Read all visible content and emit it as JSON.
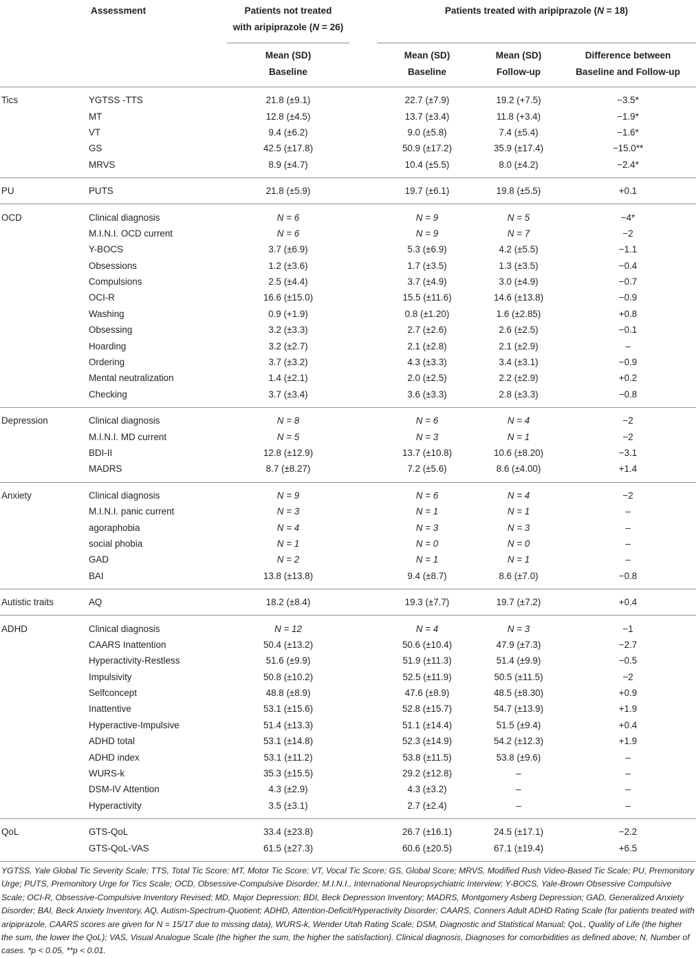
{
  "header": {
    "assessment": "Assessment",
    "not_treated_line1": "Patients not treated",
    "not_treated_line2": "with aripiprazole (",
    "not_treated_n": "N",
    "not_treated_count": " = 26)",
    "treated_prefix": "Patients treated with aripiprazole (",
    "treated_n": "N",
    "treated_count": " = 18)",
    "col_nt_line1": "Mean (SD)",
    "col_nt_line2": "Baseline",
    "col_tb_line1": "Mean (SD)",
    "col_tb_line2": "Baseline",
    "col_tf_line1": "Mean (SD)",
    "col_tf_line2": "Follow-up",
    "col_diff_line1": "Difference between",
    "col_diff_line2": "Baseline and Follow-up"
  },
  "groups": [
    {
      "name": "Tics",
      "rows": [
        [
          "YGTSS -TTS",
          "21.8 (±9.1)",
          "22.7 (±7.9)",
          "19.2 (+7.5)",
          "−3.5*"
        ],
        [
          "MT",
          "12.8 (±4.5)",
          "13.7 (±3.4)",
          "11.8 (+3.4)",
          "−1.9*"
        ],
        [
          "VT",
          "9.4 (±6.2)",
          "9.0 (±5.8)",
          "7.4 (±5.4)",
          "−1.6*"
        ],
        [
          "GS",
          "42.5 (±17.8)",
          "50.9 (±17.2)",
          "35.9 (±17.4)",
          "−15.0**"
        ],
        [
          "MRVS",
          "8.9 (±4.7)",
          "10.4 (±5.5)",
          "8.0 (±4.2)",
          "−2.4*"
        ]
      ]
    },
    {
      "name": "PU",
      "rows": [
        [
          "PUTS",
          "21.8 (±5.9)",
          "19.7 (±6.1)",
          "19.8 (±5.5)",
          "+0.1"
        ]
      ]
    },
    {
      "name": "OCD",
      "rows": [
        [
          "Clinical diagnosis",
          "N = 6",
          "N = 9",
          "N = 5",
          "−4*"
        ],
        [
          "M.I.N.I. OCD current",
          "N = 6",
          "N = 9",
          "N = 7",
          "−2"
        ],
        [
          "Y-BOCS",
          "3.7 (±6.9)",
          "5.3 (±6.9)",
          "4.2 (±5.5)",
          "−1.1"
        ],
        [
          "Obsessions",
          "1.2 (±3.6)",
          "1.7 (±3.5)",
          "1.3 (±3.5)",
          "−0.4"
        ],
        [
          "Compulsions",
          "2.5 (±4.4)",
          "3.7 (±4.9)",
          "3.0 (±4.9)",
          "−0.7"
        ],
        [
          "OCI-R",
          "16.6 (±15.0)",
          "15.5 (±11.6)",
          "14.6 (±13.8)",
          "−0.9"
        ],
        [
          "Washing",
          "0.9 (+1.9)",
          "0.8 (±1.20)",
          "1.6 (±2.85)",
          "+0.8"
        ],
        [
          "Obsessing",
          "3.2 (±3.3)",
          "2.7 (±2.6)",
          "2.6 (±2.5)",
          "−0.1"
        ],
        [
          "Hoarding",
          "3.2 (±2.7)",
          "2.1 (±2.8)",
          "2.1 (±2.9)",
          "–"
        ],
        [
          "Ordering",
          "3.7 (±3.2)",
          "4.3 (±3.3)",
          "3.4 (±3.1)",
          "−0.9"
        ],
        [
          "Mental neutralization",
          "1.4 (±2.1)",
          "2.0 (±2.5)",
          "2.2 (±2.9)",
          "+0.2"
        ],
        [
          "Checking",
          "3.7 (±3.4)",
          "3.6 (±3.3)",
          "2.8 (±3.3)",
          "−0.8"
        ]
      ]
    },
    {
      "name": "Depression",
      "rows": [
        [
          "Clinical diagnosis",
          "N = 8",
          "N = 6",
          "N = 4",
          "−2"
        ],
        [
          "M.I.N.I. MD current",
          "N = 5",
          "N = 3",
          "N = 1",
          "−2"
        ],
        [
          "BDI-II",
          "12.8 (±12.9)",
          "13.7 (±10.8)",
          "10.6 (±8.20)",
          "−3.1"
        ],
        [
          "MADRS",
          "8.7 (±8.27)",
          "7.2 (±5.6)",
          "8.6 (±4.00)",
          "+1.4"
        ]
      ]
    },
    {
      "name": "Anxiety",
      "rows": [
        [
          "Clinical diagnosis",
          "N = 9",
          "N = 6",
          "N = 4",
          "−2"
        ],
        [
          "M.I.N.I. panic current",
          "N = 3",
          "N = 1",
          "N = 1",
          "–"
        ],
        [
          "agoraphobia",
          "N = 4",
          "N = 3",
          "N = 3",
          "–"
        ],
        [
          "social phobia",
          "N = 1",
          "N = 0",
          "N = 0",
          "–"
        ],
        [
          "GAD",
          "N = 2",
          "N = 1",
          "N = 1",
          "–"
        ],
        [
          "BAI",
          "13.8 (±13.8)",
          "9.4 (±8.7)",
          "8.6 (±7.0)",
          "−0.8"
        ]
      ]
    },
    {
      "name": "Autistic traits",
      "rows": [
        [
          "AQ",
          "18.2 (±8.4)",
          "19.3 (±7.7)",
          "19.7 (±7.2)",
          "+0.4"
        ]
      ]
    },
    {
      "name": "ADHD",
      "rows": [
        [
          "Clinical diagnosis",
          "N = 12",
          "N = 4",
          "N = 3",
          "−1"
        ],
        [
          "CAARS Inattention",
          "50.4 (±13.2)",
          "50.6 (±10.4)",
          "47.9 (±7.3)",
          "−2.7"
        ],
        [
          "Hyperactivity-Restless",
          "51.6 (±9.9)",
          "51.9 (±11.3)",
          "51.4 (±9.9)",
          "−0.5"
        ],
        [
          "Impulsivity",
          "50.8 (±10.2)",
          "52.5 (±11.9)",
          "50.5 (±11.5)",
          "−2"
        ],
        [
          "Selfconcept",
          "48.8 (±8.9)",
          "47.6 (±8.9)",
          "48.5 (±8.30)",
          "+0.9"
        ],
        [
          "Inattentive",
          "53.1 (±15.6)",
          "52.8 (±15.7)",
          "54.7 (±13.9)",
          "+1.9"
        ],
        [
          "Hyperactive-Impulsive",
          "51.4 (±13.3)",
          "51.1 (±14.4)",
          "51.5 (±9.4)",
          "+0.4"
        ],
        [
          "ADHD total",
          "53.1 (±14.8)",
          "52.3 (±14.9)",
          "54.2 (±12.3)",
          "+1.9"
        ],
        [
          "ADHD index",
          "53.1 (±11.2)",
          "53.8 (±11.5)",
          "53.8 (±9.6)",
          "–"
        ],
        [
          "WURS-k",
          "35.3 (±15.5)",
          "29.2 (±12.8)",
          "–",
          "–"
        ],
        [
          "DSM-IV Attention",
          "4.3 (±2.9)",
          "4.3 (±3.2)",
          "–",
          "–"
        ],
        [
          "Hyperactivity",
          "3.5 (±3.1)",
          "2.7 (±2.4)",
          "–",
          "–"
        ]
      ]
    },
    {
      "name": "QoL",
      "rows": [
        [
          "GTS-QoL",
          "33.4 (±23.8)",
          "26.7 (±16.1)",
          "24.5 (±17.1)",
          "−2.2"
        ],
        [
          "GTS-QoL-VAS",
          "61.5 (±27.3)",
          "60.6 (±20.5)",
          "67.1 (±19.4)",
          "+6.5"
        ]
      ]
    }
  ],
  "footnote": "YGTSS, Yale Global Tic Severity Scale; TTS, Total Tic Score; MT, Motor Tic Score; VT, Vocal Tic Score; GS, Global Score; MRVS, Modified Rush Video-Based Tic Scale; PU, Premonitory Urge; PUTS, Premonitory Urge for Tics Scale; OCD, Obsessive-Compulsive Disorder; M.I.N.I., International Neuropsychiatric Interview; Y-BOCS, Yale-Brown Obsessive Compulsive Scale; OCI-R, Obsessive-Compulsive Inventory Revised; MD, Major Depression; BDI, Beck Depression Inventory; MADRS, Montgomery Asberg Depression; GAD, Generalized Anxiety Disorder; BAI, Beck Anxiety Inventory, AQ, Autism-Spectrum-Quotient; ADHD, Attention-Deficit/Hyperactivity Disorder; CAARS, Conners Adult ADHD Rating Scale (for patients treated with aripiprazole, CAARS scores are given for N = 15/17 due to missing data), WURS-k, Wender Utah Rating Scale; DSM, Diagnostic and Statistical Manual; QoL, Quality of Life (the higher the sum, the lower the QoL); VAS, Visual Analogue Scale (the higher the sum, the higher the satisfaction). Clinical diagnosis, Diagnoses for comorbidities as defined above; N, Number of cases. *p < 0.05, **p < 0.01."
}
